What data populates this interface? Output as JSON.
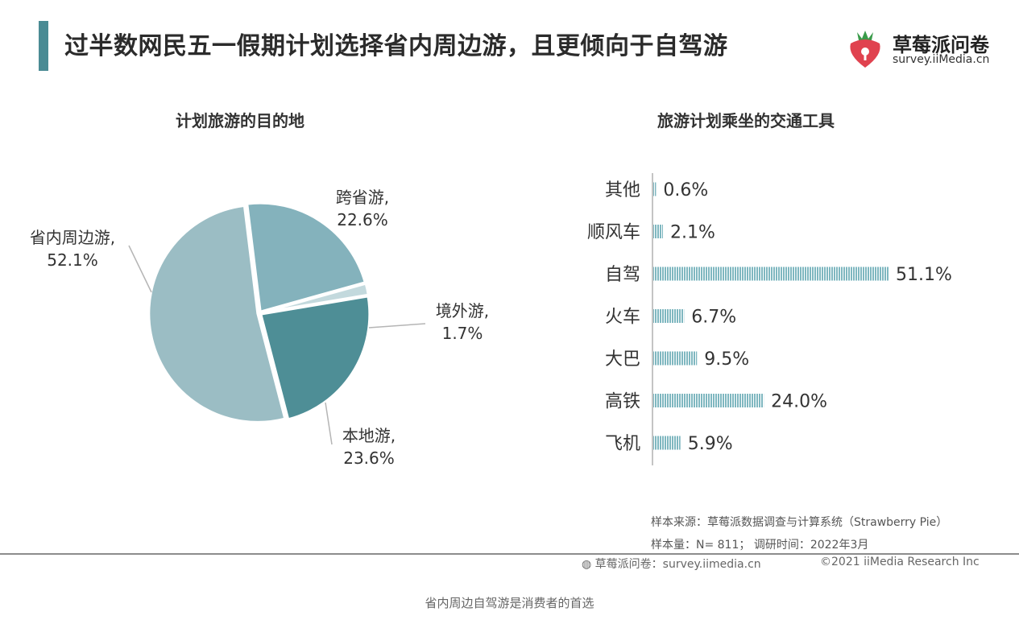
{
  "header": {
    "title": "过半数网民五一假期计划选择省内周边游，且更倾向于自驾游",
    "logo_name": "草莓派问卷",
    "logo_url": "survey.iiMedia.cn"
  },
  "chart_data": [
    {
      "type": "pie",
      "title": "计划旅游的目的地",
      "labels": [
        "省内周边游,",
        "跨省游,",
        "境外游,",
        "本地游,"
      ],
      "value_labels": [
        "52.1%",
        "22.6%",
        "1.7%",
        "23.6%"
      ],
      "values": [
        52.1,
        22.6,
        1.7,
        23.6
      ],
      "colors": [
        "#9bbdc4",
        "#84b2bc",
        "#c3d9dd",
        "#4e8e96"
      ]
    },
    {
      "type": "bar",
      "orientation": "horizontal",
      "title": "旅游计划乘坐的交通工具",
      "categories": [
        "其他",
        "顺风车",
        "自驾",
        "火车",
        "大巴",
        "高铁",
        "飞机"
      ],
      "values": [
        0.6,
        2.1,
        51.1,
        6.7,
        9.5,
        24.0,
        5.9
      ],
      "value_labels": [
        "0.6%",
        "2.1%",
        "51.1%",
        "6.7%",
        "9.5%",
        "24.0%",
        "5.9%"
      ],
      "color": "#7fb7c0"
    }
  ],
  "footer": {
    "source": "样本来源：草莓派数据调查与计算系统（Strawberry Pie）",
    "sample": "样本量：N= 811；   调研时间：2022年3月",
    "brand": "草莓派问卷：survey.iimedia.cn",
    "copyright": "©2021  iiMedia Research  Inc"
  },
  "caption": "省内周边自驾游是消费者的首选"
}
